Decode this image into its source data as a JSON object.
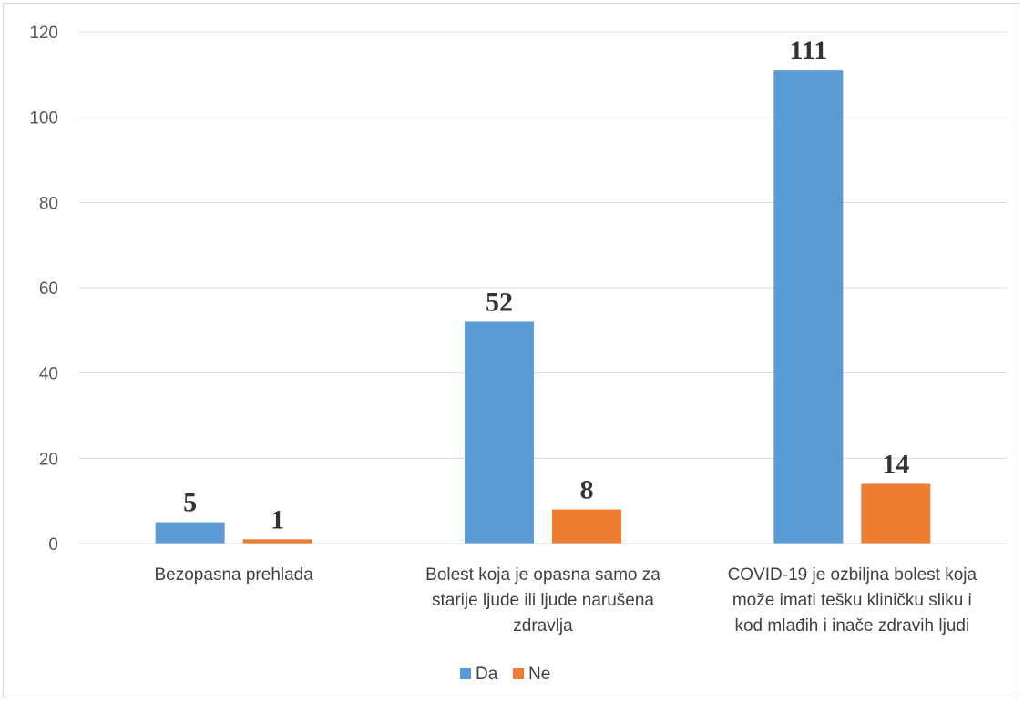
{
  "chart_data": {
    "type": "bar",
    "title": "",
    "xlabel": "",
    "ylabel": "",
    "ylim": [
      0,
      120
    ],
    "yticks": [
      0,
      20,
      40,
      60,
      80,
      100,
      120
    ],
    "grid": true,
    "legend_position": "bottom",
    "categories": [
      [
        "Bezopasna prehlada"
      ],
      [
        "Bolest koja je opasna samo za",
        "starije ljude ili ljude narušena",
        "zdravlja"
      ],
      [
        "COVID-19 je ozbiljna bolest koja",
        "može imati tešku kliničku sliku i",
        "kod mlađih i inače zdravih ljudi"
      ]
    ],
    "series": [
      {
        "name": "Da",
        "color": "#5b9bd5",
        "values": [
          5,
          52,
          111
        ]
      },
      {
        "name": "Ne",
        "color": "#ed7d31",
        "values": [
          1,
          8,
          14
        ]
      }
    ]
  }
}
